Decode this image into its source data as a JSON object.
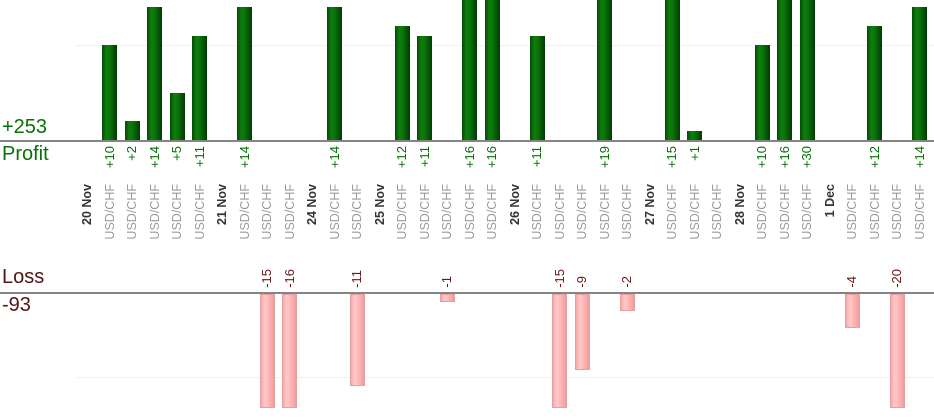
{
  "colors": {
    "profit_bar_bright": "#0d7f0d",
    "profit_bar_dark": "#064906",
    "profit_label": "#077107",
    "loss_bar_light": "#ffc9c9",
    "loss_bar_main": "#f9a8a8",
    "loss_label": "#6d1515",
    "loss_heading": "#541212",
    "date_label": "#333333",
    "instrument_label": "#9b9b9b",
    "axis": "#848484",
    "grid": "#f0f0f0"
  },
  "chart_data": {
    "type": "bar",
    "instrument": "USD/CHF",
    "panels": [
      {
        "name": "Profit",
        "total": "+253",
        "gridline_value": 10,
        "orientation": "up"
      },
      {
        "name": "Loss",
        "total": "-93",
        "gridline_value": -10,
        "orientation": "down"
      }
    ],
    "groups": [
      {
        "date": "20 Nov",
        "trades": [
          10,
          2,
          14,
          5,
          11
        ]
      },
      {
        "date": "21 Nov",
        "trades": [
          14,
          -15,
          -16
        ]
      },
      {
        "date": "24 Nov",
        "trades": [
          14,
          -11
        ]
      },
      {
        "date": "25 Nov",
        "trades": [
          12,
          11,
          -1,
          16,
          16
        ]
      },
      {
        "date": "26 Nov",
        "trades": [
          11,
          -15,
          -9,
          19,
          -2
        ]
      },
      {
        "date": "27 Nov",
        "trades": [
          15,
          1,
          0
        ]
      },
      {
        "date": "28 Nov",
        "trades": [
          10,
          16,
          30
        ]
      },
      {
        "date": "1 Dec",
        "trades": [
          -4,
          12,
          -20,
          14
        ]
      }
    ]
  }
}
